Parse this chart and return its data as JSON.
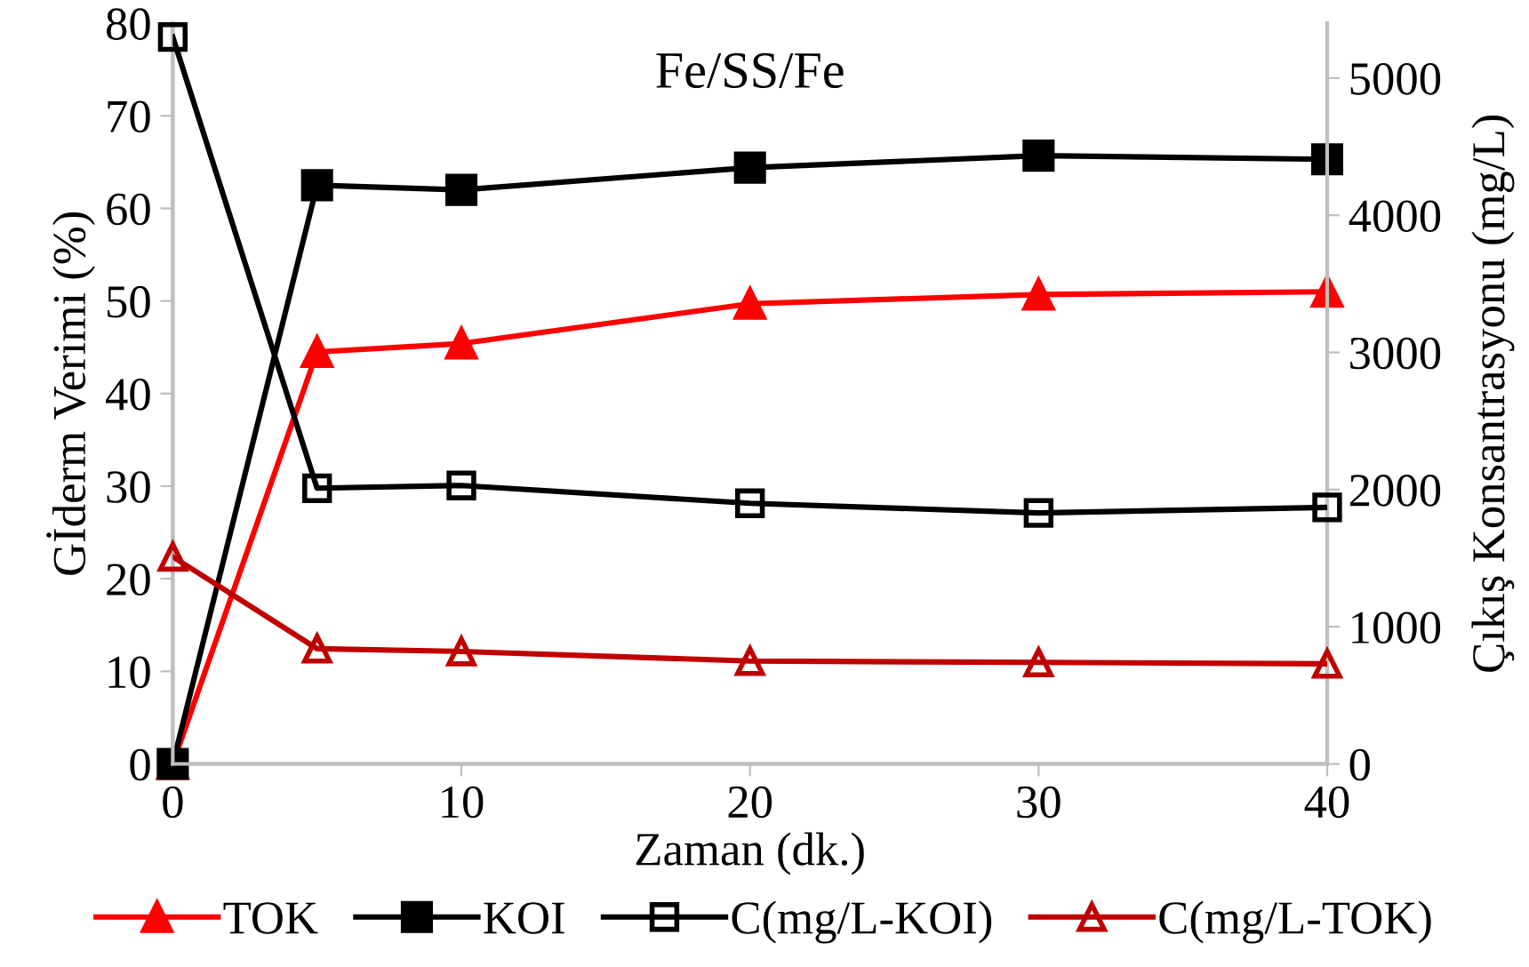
{
  "chart_data": {
    "type": "line",
    "title": "Fe/SS/Fe",
    "xlabel": "Zaman (dk.)",
    "ylabel": "Gİderm Verimi (%)",
    "y2label": "Çıkış Konsantrasyonu (mg/L)",
    "x": [
      0,
      5,
      10,
      20,
      30,
      40
    ],
    "xlim": [
      0,
      40
    ],
    "xticks": [
      0,
      10,
      20,
      30,
      40
    ],
    "ylim": [
      0,
      80
    ],
    "yticks": [
      0,
      10,
      20,
      30,
      40,
      50,
      60,
      70,
      80
    ],
    "y2lim": [
      0,
      5400
    ],
    "y2ticks": [
      0,
      1000,
      2000,
      3000,
      4000,
      5000
    ],
    "grid": false,
    "legend": "bottom",
    "series": [
      {
        "name": "TOK",
        "color": "#ff0000",
        "marker": "triangle",
        "values": [
          0,
          44.5,
          45.4,
          49.7,
          50.7,
          51.0
        ]
      },
      {
        "name": "KOI",
        "color": "#000000",
        "marker": "square",
        "values": [
          0,
          62.5,
          62.0,
          64.4,
          65.7,
          65.3
        ]
      },
      {
        "name": "C(mg/L-KOI)",
        "color": "#000000",
        "marker": "square",
        "axis": "y2",
        "values": [
          5300,
          2010,
          2030,
          1900,
          1830,
          1870
        ]
      },
      {
        "name": "C(mg/L-TOK)",
        "color": "#c00000",
        "marker": "triangle",
        "axis": "y2",
        "values": [
          1510,
          840,
          820,
          750,
          740,
          730
        ]
      }
    ]
  }
}
